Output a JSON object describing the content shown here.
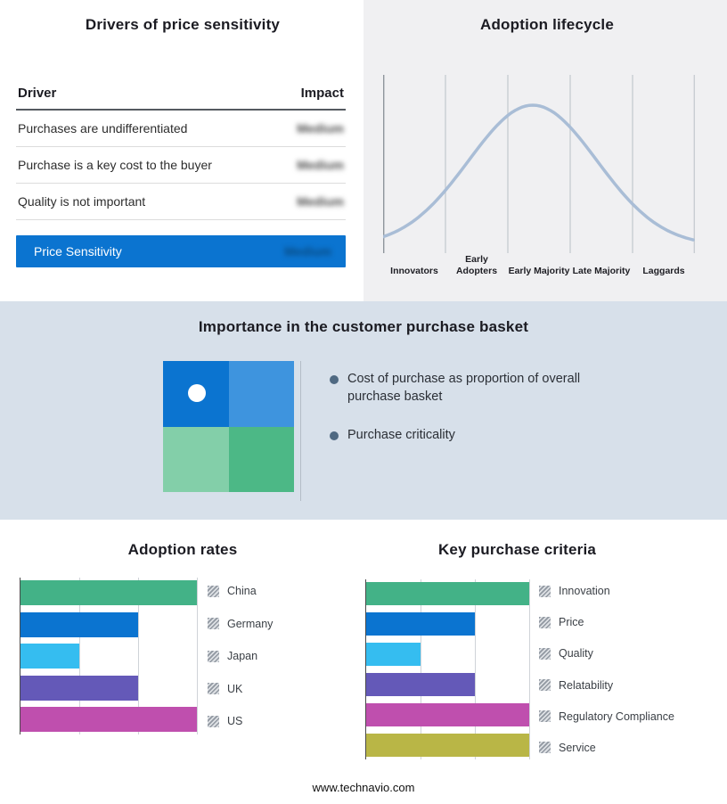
{
  "drivers_panel": {
    "title": "Drivers of price sensitivity",
    "columns": {
      "driver": "Driver",
      "impact": "Impact"
    },
    "rows": [
      {
        "driver": "Purchases are undifferentiated",
        "impact": "Medium"
      },
      {
        "driver": "Purchase is a key cost to the buyer",
        "impact": "Medium"
      },
      {
        "driver": "Quality is not important",
        "impact": "Medium"
      }
    ],
    "summary": {
      "label": "Price Sensitivity",
      "impact": "Medium"
    }
  },
  "basket_panel": {
    "title": "Importance in the customer purchase basket",
    "bullets": [
      "Cost of purchase as proportion of overall purchase basket",
      "Purchase criticality"
    ],
    "quadrants": [
      "#0b74d0",
      "#3e94de",
      "#83cfa9",
      "#4cb886"
    ]
  },
  "chart_data": [
    {
      "id": "adoption_lifecycle",
      "type": "area",
      "title": "Adoption lifecycle",
      "categories": [
        "Innovators",
        "Early Adopters",
        "Early Majority",
        "Late Majority",
        "Laggards"
      ],
      "curve": "bell",
      "peak_category": "Early Majority",
      "grid": true,
      "line_color": "#a9bdd6"
    },
    {
      "id": "adoption_rates",
      "type": "bar",
      "title": "Adoption rates",
      "orientation": "horizontal",
      "categories": [
        "China",
        "Germany",
        "Japan",
        "UK",
        "US"
      ],
      "values": [
        3,
        2,
        1,
        2,
        3
      ],
      "colors": [
        "#43b287",
        "#0b74d0",
        "#35bdf0",
        "#6459b8",
        "#bf4fae"
      ],
      "xlim": [
        0,
        3
      ],
      "grid": true,
      "legend_position": "right"
    },
    {
      "id": "key_purchase_criteria",
      "type": "bar",
      "title": "Key purchase criteria",
      "orientation": "horizontal",
      "categories": [
        "Innovation",
        "Price",
        "Quality",
        "Relatability",
        "Regulatory Compliance",
        "Service"
      ],
      "values": [
        3,
        2,
        1,
        2,
        3,
        3
      ],
      "colors": [
        "#43b287",
        "#0b74d0",
        "#35bdf0",
        "#6459b8",
        "#bf4fae",
        "#b9b646"
      ],
      "xlim": [
        0,
        3
      ],
      "grid": true,
      "legend_position": "right"
    }
  ],
  "footer": {
    "url": "www.technavio.com"
  }
}
